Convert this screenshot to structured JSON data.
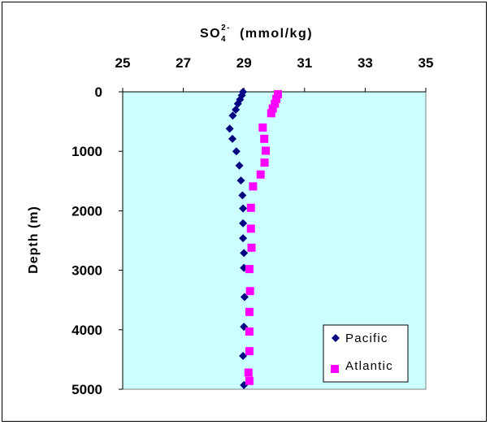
{
  "chart_data": {
    "type": "scatter",
    "title": {
      "main": "SO",
      "sub": "4",
      "sup": "2-",
      "unit": "(mmol/kg)"
    },
    "xlabel": "SO4 2- (mmol/kg)",
    "ylabel": "Depth (m)",
    "xlim": [
      25,
      35
    ],
    "ylim": [
      0,
      5000
    ],
    "y_reversed": true,
    "x_axis_position": "top",
    "xticks": [
      "25",
      "27",
      "29",
      "31",
      "33",
      "35"
    ],
    "yticks": [
      "0",
      "1000",
      "2000",
      "3000",
      "4000",
      "5000"
    ],
    "plot_background": "#ccffff",
    "grid": false,
    "legend_position": "bottom-right",
    "series": [
      {
        "name": "Pacific",
        "marker": "diamond",
        "color": "#000080",
        "points": [
          {
            "x": 28.97,
            "y": 0
          },
          {
            "x": 28.93,
            "y": 60
          },
          {
            "x": 28.87,
            "y": 130
          },
          {
            "x": 28.8,
            "y": 200
          },
          {
            "x": 28.73,
            "y": 300
          },
          {
            "x": 28.63,
            "y": 400
          },
          {
            "x": 28.53,
            "y": 620
          },
          {
            "x": 28.62,
            "y": 790
          },
          {
            "x": 28.75,
            "y": 1000
          },
          {
            "x": 28.85,
            "y": 1240
          },
          {
            "x": 28.9,
            "y": 1490
          },
          {
            "x": 28.95,
            "y": 1740
          },
          {
            "x": 28.97,
            "y": 1960
          },
          {
            "x": 28.97,
            "y": 2210
          },
          {
            "x": 28.97,
            "y": 2460
          },
          {
            "x": 29.0,
            "y": 2710
          },
          {
            "x": 29.0,
            "y": 2960
          },
          {
            "x": 29.02,
            "y": 3450
          },
          {
            "x": 29.0,
            "y": 3950
          },
          {
            "x": 28.97,
            "y": 4440
          },
          {
            "x": 29.0,
            "y": 4930
          }
        ]
      },
      {
        "name": "Atlantic",
        "marker": "square",
        "color": "#ff00ff",
        "points": [
          {
            "x": 30.12,
            "y": 40
          },
          {
            "x": 30.07,
            "y": 120
          },
          {
            "x": 30.02,
            "y": 200
          },
          {
            "x": 29.95,
            "y": 280
          },
          {
            "x": 29.9,
            "y": 360
          },
          {
            "x": 29.62,
            "y": 600
          },
          {
            "x": 29.67,
            "y": 790
          },
          {
            "x": 29.72,
            "y": 990
          },
          {
            "x": 29.68,
            "y": 1190
          },
          {
            "x": 29.55,
            "y": 1390
          },
          {
            "x": 29.3,
            "y": 1590
          },
          {
            "x": 29.23,
            "y": 1950
          },
          {
            "x": 29.23,
            "y": 2300
          },
          {
            "x": 29.25,
            "y": 2620
          },
          {
            "x": 29.18,
            "y": 2980
          },
          {
            "x": 29.2,
            "y": 3350
          },
          {
            "x": 29.18,
            "y": 3700
          },
          {
            "x": 29.18,
            "y": 4030
          },
          {
            "x": 29.18,
            "y": 4360
          },
          {
            "x": 29.15,
            "y": 4720
          },
          {
            "x": 29.18,
            "y": 4860
          }
        ]
      }
    ]
  }
}
